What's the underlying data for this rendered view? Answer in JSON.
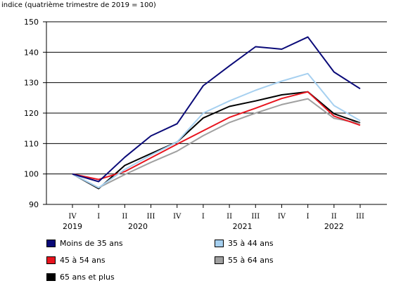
{
  "chart_data": {
    "type": "line",
    "ylabel": "indice (quatrième trimestre de 2019 = 100)",
    "ylim": [
      90,
      150
    ],
    "yticks": [
      90,
      100,
      110,
      120,
      130,
      140,
      150
    ],
    "grid": true,
    "x": [
      "IV",
      "I",
      "II",
      "III",
      "IV",
      "I",
      "II",
      "III",
      "IV",
      "I",
      "II",
      "III"
    ],
    "years": [
      {
        "label": "2019",
        "start": 0,
        "end": 0
      },
      {
        "label": "2020",
        "start": 1,
        "end": 4
      },
      {
        "label": "2021",
        "start": 5,
        "end": 8
      },
      {
        "label": "2022",
        "start": 9,
        "end": 11
      }
    ],
    "legend_position": "bottom",
    "series": [
      {
        "name": "Moins de 35 ans",
        "color": "#0a0a78",
        "values": [
          100,
          97.5,
          105.5,
          112.5,
          116.5,
          129,
          135.5,
          141.8,
          141,
          145,
          133.5,
          128
        ]
      },
      {
        "name": "35 à 44 ans",
        "color": "#a6d0f0",
        "values": [
          100,
          95.5,
          101.5,
          106.2,
          110.5,
          120,
          124,
          127.5,
          130.5,
          133,
          122.5,
          117.5
        ]
      },
      {
        "name": "45 à 54 ans",
        "color": "#e8141e",
        "values": [
          100,
          98.2,
          100.8,
          105.3,
          109.8,
          114.2,
          118.6,
          121.6,
          124.8,
          127,
          119,
          116
        ]
      },
      {
        "name": "55 à 64 ans",
        "color": "#a0a0a0",
        "values": [
          100,
          95.5,
          99.8,
          103.8,
          107.5,
          112.6,
          116.9,
          120,
          122.8,
          124.7,
          118.3,
          116.6
        ]
      },
      {
        "name": "65 ans et plus",
        "color": "#000000",
        "values": [
          100,
          95.2,
          102.8,
          106.7,
          110.5,
          118.4,
          122.2,
          124,
          126,
          127,
          119.8,
          116.8
        ]
      }
    ]
  }
}
